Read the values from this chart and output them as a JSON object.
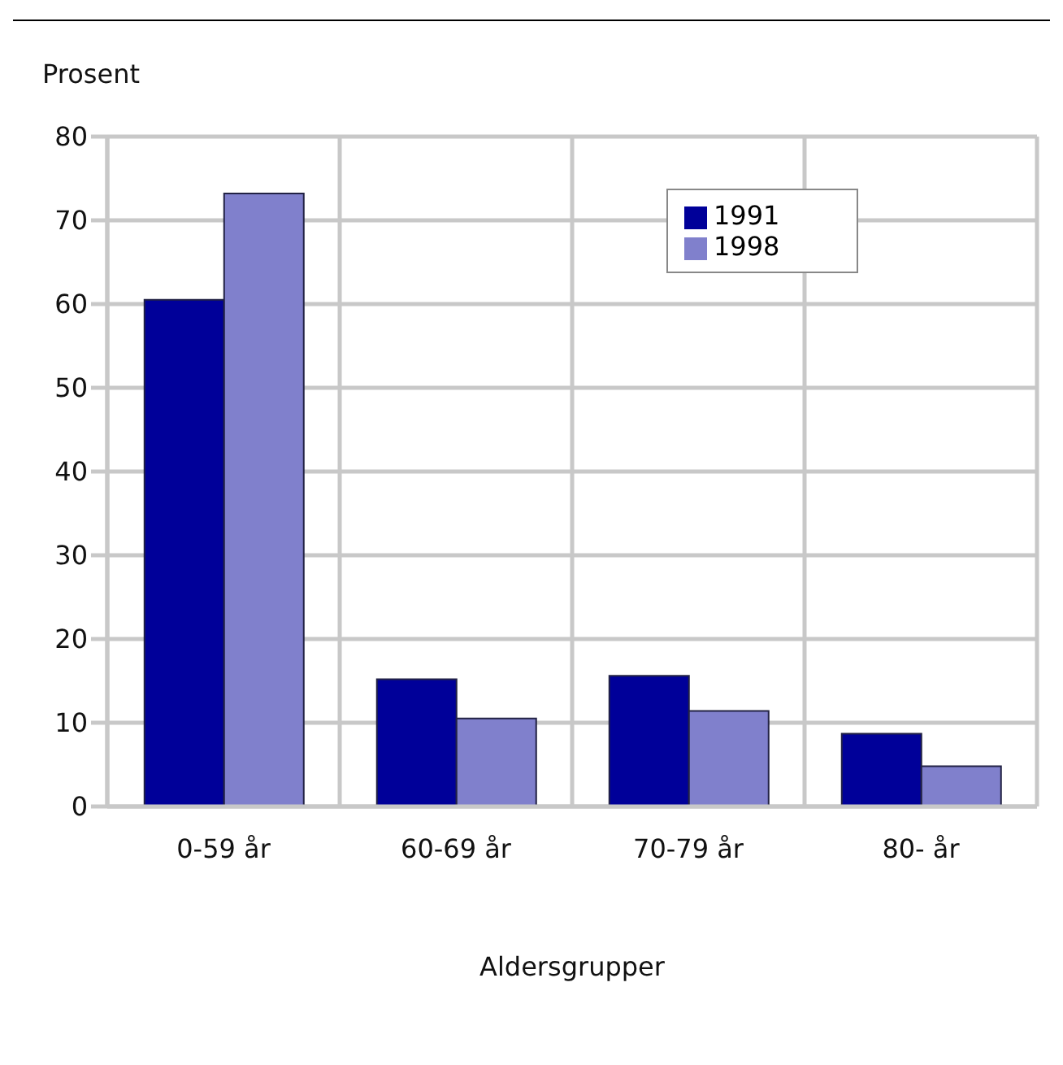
{
  "chart_data": {
    "type": "bar",
    "xlabel": "Aldersgrupper",
    "ylabel": "Prosent",
    "categories": [
      "0-59 år",
      "60-69 år",
      "70-79 år",
      "80- år"
    ],
    "series": [
      {
        "name": "1991",
        "color": "#000099",
        "values": [
          60.5,
          15.2,
          15.6,
          8.7
        ]
      },
      {
        "name": "1998",
        "color": "#8080cc",
        "values": [
          73.2,
          10.5,
          11.4,
          4.8
        ]
      }
    ],
    "ylim": [
      0,
      80
    ],
    "yticks": [
      0,
      10,
      20,
      30,
      40,
      50,
      60,
      70,
      80
    ],
    "grid": true,
    "legend": "top right"
  }
}
